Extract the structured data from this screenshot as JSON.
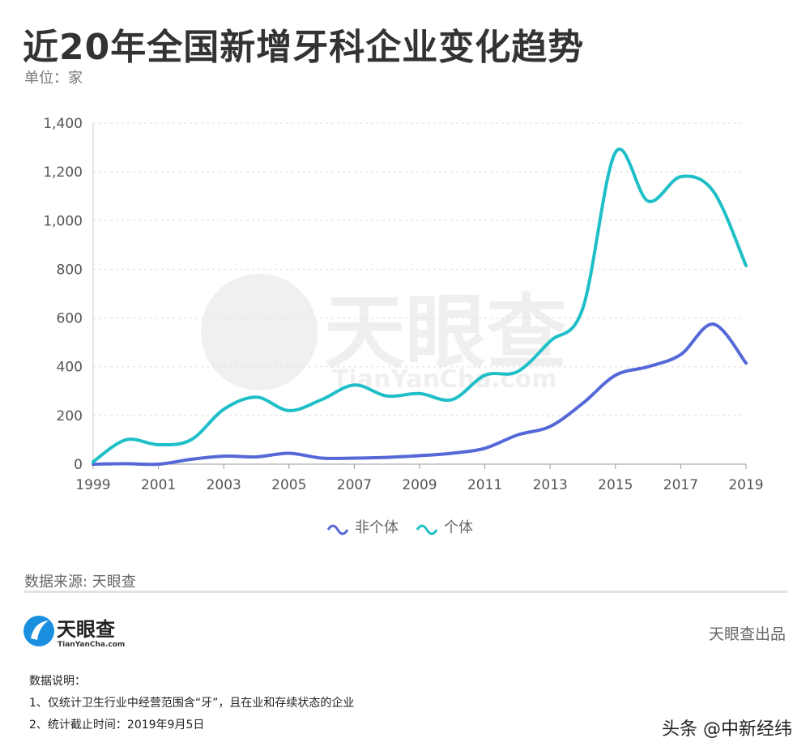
{
  "header": {
    "title": "近20年全国新增牙科企业变化趋势",
    "unit": "单位：家"
  },
  "chart_data": {
    "type": "line",
    "x": [
      1999,
      2000,
      2001,
      2002,
      2003,
      2004,
      2005,
      2006,
      2007,
      2008,
      2009,
      2010,
      2011,
      2012,
      2013,
      2014,
      2015,
      2016,
      2017,
      2018,
      2019
    ],
    "xticks": [
      "1999",
      "2001",
      "2003",
      "2005",
      "2007",
      "2009",
      "2011",
      "2013",
      "2015",
      "2017",
      "2019"
    ],
    "yticks": [
      "0",
      "200",
      "400",
      "600",
      "800",
      "1,000",
      "1,200",
      "1,400"
    ],
    "ylim": [
      0,
      1400
    ],
    "grid": true,
    "legend_position": "bottom",
    "series": [
      {
        "name": "非个体",
        "color": "#5468d8",
        "values": [
          0,
          2,
          0,
          20,
          33,
          30,
          45,
          25,
          25,
          28,
          35,
          45,
          65,
          120,
          155,
          250,
          365,
          400,
          450,
          575,
          415
        ]
      },
      {
        "name": "个体",
        "color": "#1fbfc7",
        "values": [
          10,
          100,
          80,
          100,
          225,
          275,
          220,
          265,
          325,
          280,
          290,
          265,
          365,
          380,
          505,
          640,
          1280,
          1080,
          1180,
          1120,
          815
        ]
      }
    ]
  },
  "watermark": {
    "text": "天眼查",
    "sub": "TianYanCha.com"
  },
  "footer": {
    "source": "数据来源: 天眼查",
    "logo_text": "天眼查",
    "logo_sub": "TianYanCha.com",
    "brand": "天眼查出品",
    "notes_title": "数据说明：",
    "note1": "1、仅统计卫生行业中经营范围含“牙”，且在业和存续状态的企业",
    "note2": "2、统计截止时间：2019年9月5日",
    "credit": "头条 @中新经纬"
  }
}
